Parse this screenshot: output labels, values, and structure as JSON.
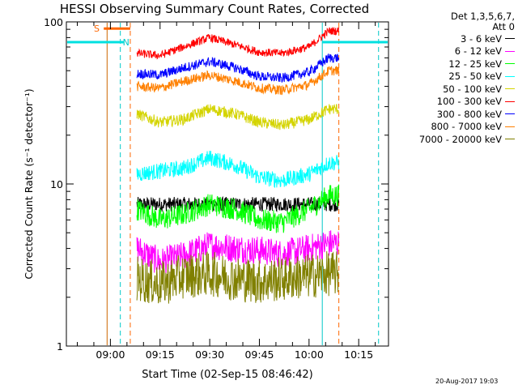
{
  "chart_data": {
    "type": "line",
    "title": "HESSI Observing Summary Count Rates, Corrected",
    "xlabel": "Start Time (02-Sep-15 08:46:42)",
    "ylabel": "Corrected Count Rate (s⁻¹ detector⁻¹)",
    "yscale": "log",
    "ylim": [
      1,
      100
    ],
    "xlim_minutes": [
      "08:46:42",
      "10:24:00"
    ],
    "x_ticks": [
      "09:00",
      "09:15",
      "09:30",
      "09:45",
      "10:00",
      "10:15"
    ],
    "y_ticks": [
      "1",
      "10",
      "100"
    ],
    "grid": false,
    "legend_position": "right",
    "legend_header": [
      "Det 1,3,5,6,7,",
      "Att 0"
    ],
    "data_window": [
      "09:08",
      "10:09"
    ],
    "series": [
      {
        "name": "3 - 6 keV",
        "color": "#000000",
        "x": [
          "09:08",
          "09:15",
          "09:22",
          "09:30",
          "09:38",
          "09:45",
          "09:52",
          "10:00",
          "10:06"
        ],
        "y": [
          7.5,
          7.5,
          7.5,
          7.5,
          7.5,
          7.5,
          7.5,
          7.5,
          7.5
        ]
      },
      {
        "name": "6 - 12 keV",
        "color": "#ff00ff",
        "x": [
          "09:08",
          "09:15",
          "09:22",
          "09:30",
          "09:38",
          "09:45",
          "09:52",
          "10:00",
          "10:06"
        ],
        "y": [
          4.0,
          3.3,
          3.6,
          4.2,
          4.0,
          3.9,
          3.7,
          4.0,
          4.3
        ]
      },
      {
        "name": "12 - 25 keV",
        "color": "#00ff00",
        "x": [
          "09:08",
          "09:15",
          "09:22",
          "09:30",
          "09:38",
          "09:45",
          "09:52",
          "10:00",
          "10:06"
        ],
        "y": [
          7.0,
          6.0,
          6.5,
          7.5,
          7.0,
          6.0,
          5.8,
          7.0,
          8.5
        ]
      },
      {
        "name": "25 - 50 keV",
        "color": "#00ffff",
        "x": [
          "09:08",
          "09:15",
          "09:22",
          "09:30",
          "09:38",
          "09:45",
          "09:52",
          "10:00",
          "10:06"
        ],
        "y": [
          11.5,
          12.0,
          12.5,
          14.5,
          13.0,
          11.0,
          10.5,
          11.5,
          13.5
        ]
      },
      {
        "name": "50 - 100 keV",
        "color": "#d4d400",
        "x": [
          "09:08",
          "09:15",
          "09:22",
          "09:30",
          "09:38",
          "09:45",
          "09:52",
          "10:00",
          "10:06"
        ],
        "y": [
          27,
          24,
          25,
          29,
          27,
          24,
          23,
          25,
          29
        ]
      },
      {
        "name": "100 - 300 keV",
        "color": "#ff0000",
        "x": [
          "09:08",
          "09:15",
          "09:22",
          "09:30",
          "09:38",
          "09:45",
          "09:52",
          "10:00",
          "10:06"
        ],
        "y": [
          64,
          62,
          70,
          80,
          72,
          65,
          64,
          70,
          88
        ]
      },
      {
        "name": "300 - 800 keV",
        "color": "#0000ff",
        "x": [
          "09:08",
          "09:15",
          "09:22",
          "09:30",
          "09:38",
          "09:45",
          "09:52",
          "10:00",
          "10:06"
        ],
        "y": [
          48,
          47,
          52,
          57,
          52,
          46,
          45,
          49,
          60
        ]
      },
      {
        "name": "800 - 7000 keV",
        "color": "#ff8000",
        "x": [
          "09:08",
          "09:15",
          "09:22",
          "09:30",
          "09:38",
          "09:45",
          "09:52",
          "10:00",
          "10:06"
        ],
        "y": [
          40,
          39,
          43,
          47,
          43,
          39,
          38,
          41,
          50
        ]
      },
      {
        "name": "7000 - 20000 keV",
        "color": "#808000",
        "x": [
          "09:08",
          "09:15",
          "09:22",
          "09:30",
          "09:38",
          "09:45",
          "09:52",
          "10:00",
          "10:06"
        ],
        "y": [
          2.6,
          2.4,
          2.7,
          2.8,
          2.6,
          2.5,
          2.6,
          2.7,
          2.8
        ]
      }
    ],
    "annotations": {
      "saa_label": "S",
      "night_label": "N",
      "saa_bar": [
        "08:58",
        "09:06"
      ],
      "orbit_marks": [
        {
          "time": "08:59",
          "color": "#cc6600",
          "style": "solid"
        },
        {
          "time": "09:03",
          "color": "#00c8c8",
          "style": "dashed"
        },
        {
          "time": "09:06",
          "color": "#ff6600",
          "style": "dashed"
        },
        {
          "time": "10:04",
          "color": "#00c8c8",
          "style": "solid"
        },
        {
          "time": "10:09",
          "color": "#ff6600",
          "style": "dashed"
        },
        {
          "time": "10:21",
          "color": "#00c8c8",
          "style": "dashed"
        }
      ],
      "night_bar": [
        [
          "08:46:42",
          "09:04"
        ],
        [
          "10:04",
          "10:24"
        ]
      ],
      "night_bar_level": 75
    }
  },
  "footer": {
    "timestamp": "20-Aug-2017 19:03"
  },
  "colors": {
    "background": "#ffffff",
    "axis": "#000000"
  }
}
